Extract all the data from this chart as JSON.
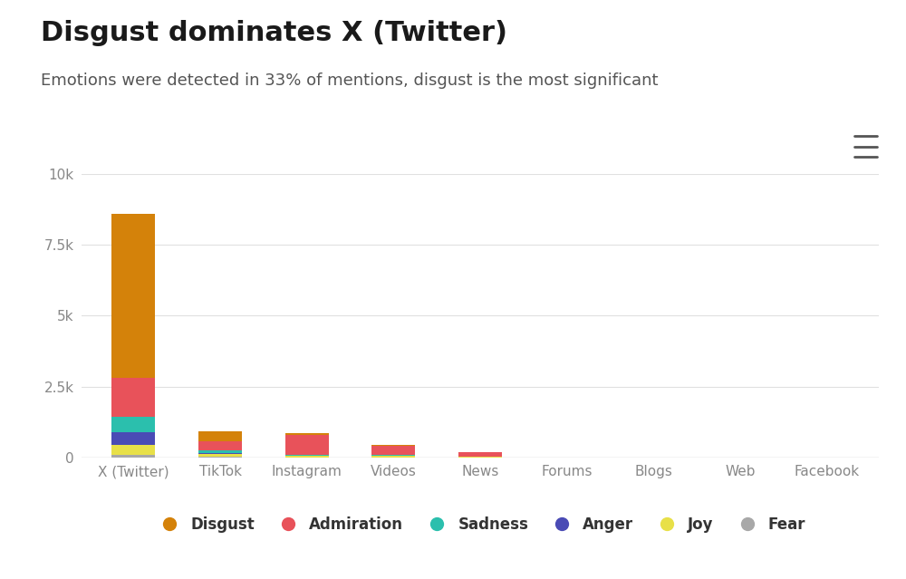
{
  "title": "Disgust dominates X (Twitter)",
  "subtitle": "Emotions were detected in 33% of mentions, disgust is the most significant",
  "categories": [
    "X (Twitter)",
    "TikTok",
    "Instagram",
    "Videos",
    "News",
    "Forums",
    "Blogs",
    "Web",
    "Facebook"
  ],
  "emotions": [
    "Fear",
    "Joy",
    "Anger",
    "Sadness",
    "Admiration",
    "Disgust"
  ],
  "legend_order": [
    "Disgust",
    "Admiration",
    "Sadness",
    "Anger",
    "Joy",
    "Fear"
  ],
  "colors": {
    "Disgust": "#D4820A",
    "Admiration": "#E8525A",
    "Sadness": "#2BBFAD",
    "Anger": "#4A4BB5",
    "Joy": "#E8E048",
    "Fear": "#A8A8A8"
  },
  "data": {
    "Fear": [
      90,
      20,
      5,
      5,
      5,
      0,
      0,
      0,
      0
    ],
    "Joy": [
      350,
      90,
      50,
      60,
      8,
      0,
      0,
      0,
      0
    ],
    "Anger": [
      450,
      55,
      15,
      8,
      4,
      0,
      0,
      0,
      0
    ],
    "Sadness": [
      550,
      75,
      15,
      8,
      4,
      0,
      0,
      0,
      0
    ],
    "Admiration": [
      1360,
      330,
      720,
      330,
      160,
      0,
      0,
      0,
      0
    ],
    "Disgust": [
      5800,
      350,
      50,
      20,
      10,
      0,
      0,
      0,
      0
    ]
  },
  "ylim": [
    0,
    10000
  ],
  "yticks": [
    0,
    2500,
    5000,
    7500,
    10000
  ],
  "ytick_labels": [
    "0",
    "2.5k",
    "5k",
    "7.5k",
    "10k"
  ],
  "background_color": "#ffffff",
  "title_fontsize": 22,
  "subtitle_fontsize": 13,
  "axis_label_fontsize": 11,
  "legend_fontsize": 12,
  "hamburger_color": "#555555",
  "bar_width": 0.5
}
